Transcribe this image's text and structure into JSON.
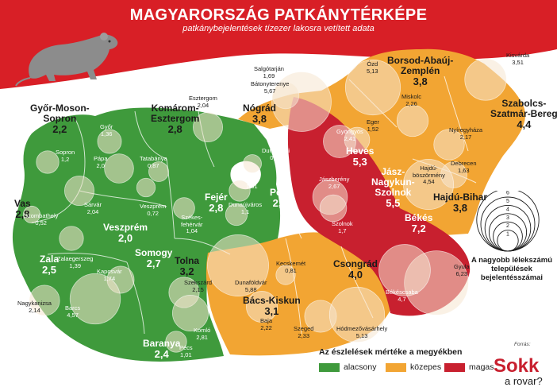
{
  "header": {
    "title": "MAGYARORSZÁG PATKÁNYTÉRKÉPE",
    "subtitle": "patkánybejelentések tízezer lakosra vetített adata"
  },
  "counties": [
    {
      "name": "Győr-Moson-Sopron",
      "lines": [
        "Győr-Moson-",
        "Sopron"
      ],
      "value": "2,2",
      "level": "low"
    },
    {
      "name": "Komárom-Esztergom",
      "lines": [
        "Komárom-",
        "Esztergom"
      ],
      "value": "2,8",
      "level": "low"
    },
    {
      "name": "Nógrád",
      "lines": [
        "Nógrád"
      ],
      "value": "3,8",
      "level": "medium"
    },
    {
      "name": "Borsod-Abaúj-Zemplén",
      "lines": [
        "Borsod-Abaúj-",
        "Zemplén"
      ],
      "value": "3,8",
      "level": "medium"
    },
    {
      "name": "Szabolcs-Szatmár-Bereg",
      "lines": [
        "Szabolcs-",
        "Szatmár-Bereg"
      ],
      "value": "4,4",
      "level": "medium"
    },
    {
      "name": "Heves",
      "lines": [
        "Heves"
      ],
      "value": "5,3",
      "level": "high"
    },
    {
      "name": "Jász-Nagykun-Szolnok",
      "lines": [
        "Jász-",
        "Nagykun-",
        "Szolnok"
      ],
      "value": "5,5",
      "level": "high"
    },
    {
      "name": "Hajdú-Bihar",
      "lines": [
        "Hajdú-Bihar"
      ],
      "value": "3,8",
      "level": "medium"
    },
    {
      "name": "Vas",
      "lines": [
        "Vas"
      ],
      "value": "2,8",
      "level": "low"
    },
    {
      "name": "Veszprém",
      "lines": [
        "Veszprém"
      ],
      "value": "2,0",
      "level": "low"
    },
    {
      "name": "Fejér",
      "lines": [
        "Fejér"
      ],
      "value": "2,8",
      "level": "low"
    },
    {
      "name": "Pest",
      "lines": [
        "Pest"
      ],
      "value": "2,4",
      "level": "low"
    },
    {
      "name": "Békés",
      "lines": [
        "Békés"
      ],
      "value": "7,2",
      "level": "high"
    },
    {
      "name": "Zala",
      "lines": [
        "Zala"
      ],
      "value": "2,5",
      "level": "low"
    },
    {
      "name": "Somogy",
      "lines": [
        "Somogy"
      ],
      "value": "2,7",
      "level": "low"
    },
    {
      "name": "Tolna",
      "lines": [
        "Tolna"
      ],
      "value": "3,2",
      "level": "medium"
    },
    {
      "name": "Csongrád",
      "lines": [
        "Csongrád"
      ],
      "value": "4,0",
      "level": "medium"
    },
    {
      "name": "Bács-Kiskun",
      "lines": [
        "Bács-Kiskun"
      ],
      "value": "3,1",
      "level": "medium"
    },
    {
      "name": "Baranya",
      "lines": [
        "Baranya"
      ],
      "value": "2,4",
      "level": "low"
    }
  ],
  "cities": [
    {
      "name": "Salgótarján",
      "value": "1,69"
    },
    {
      "name": "Bátonyterenye",
      "value": "5,67"
    },
    {
      "name": "Ózd",
      "value": "5,13"
    },
    {
      "name": "Kisvárda",
      "value": "3,51"
    },
    {
      "name": "Esztergom",
      "value": "2,04"
    },
    {
      "name": "Miskolc",
      "value": "2,26"
    },
    {
      "name": "Eger",
      "value": "1,52"
    },
    {
      "name": "Győr",
      "value": "1,36"
    },
    {
      "name": "Gyöngyös",
      "value": "2,41"
    },
    {
      "name": "Nyíregyháza",
      "value": "2,17"
    },
    {
      "name": "Sopron",
      "value": "1,2"
    },
    {
      "name": "Pápa",
      "value": "2,0"
    },
    {
      "name": "Tatabánya",
      "value": "0,87"
    },
    {
      "name": "Dunakeszi",
      "value": "0,68"
    },
    {
      "name": "Debrecen",
      "value": "1,63"
    },
    {
      "name": "Hajdúböszörmény",
      "value": "4,54"
    },
    {
      "name": "Jászberény",
      "value": "2,67"
    },
    {
      "name": "Sárvár",
      "value": "2,04"
    },
    {
      "name": "Veszprém",
      "value": "0,72"
    },
    {
      "name": "Érd",
      "value": "1,01"
    },
    {
      "name": "Szombathely",
      "value": "0,52"
    },
    {
      "name": "Székesfehérvár",
      "value": "1,04"
    },
    {
      "name": "Dunaújváros",
      "value": "1,1"
    },
    {
      "name": "Szolnok",
      "value": "1,7"
    },
    {
      "name": "Zalaegerszeg",
      "value": "1,39"
    },
    {
      "name": "Kecskemét",
      "value": "0,81"
    },
    {
      "name": "Gyula",
      "value": "6,23"
    },
    {
      "name": "Kaposvár",
      "value": "1,74"
    },
    {
      "name": "Szekszárd",
      "value": "2,15"
    },
    {
      "name": "Dunaföldvár",
      "value": "5,88"
    },
    {
      "name": "Nagykanizsa",
      "value": "2,14"
    },
    {
      "name": "Békéscsaba",
      "value": "4,7"
    },
    {
      "name": "Baja",
      "value": "2,22"
    },
    {
      "name": "Barcs",
      "value": "4,57"
    },
    {
      "name": "Szeged",
      "value": "2,33"
    },
    {
      "name": "Hódmezővásárhely",
      "value": "5,13"
    },
    {
      "name": "Komló",
      "value": "2,81"
    },
    {
      "name": "Pécs",
      "value": "1,01"
    }
  ],
  "bubble_scale": {
    "ticks": [
      "6",
      "5",
      "4",
      "3",
      "2",
      "1"
    ],
    "note": "A nagyobb lélekszámú települések bejelentésszámai"
  },
  "legend": {
    "title": "Az észlelések mértéke a megyékben",
    "items": [
      {
        "label": "alacsony",
        "color": "#3f9a3c"
      },
      {
        "label": "közepes",
        "color": "#f2a533"
      },
      {
        "label": "magas",
        "color": "#c8202f"
      }
    ]
  },
  "source": {
    "label": "Forrás:",
    "logo_line1": "Sokk",
    "logo_line2": "a rovar?"
  },
  "colors": {
    "banner": "#d81f26",
    "low": "#3f9a3c",
    "medium": "#f2a533",
    "high": "#c8202f",
    "bubble": "#f5e6d0"
  },
  "icons": [
    "rat-icon"
  ]
}
